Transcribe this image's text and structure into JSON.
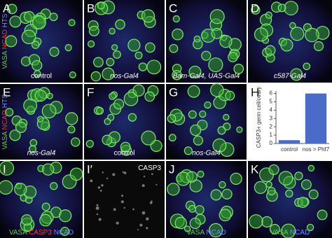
{
  "panels": [
    {
      "letter": "A",
      "caption": "control",
      "stains": [
        {
          "text": "VASA",
          "color": "#5ccc4a"
        },
        {
          "text": "NCAD",
          "color": "#ee3a2a"
        },
        {
          "text": "HTS",
          "color": "#6a8cff"
        }
      ],
      "stain_position": "left"
    },
    {
      "letter": "B",
      "caption": "nos-Gal4",
      "italic": true
    },
    {
      "letter": "C",
      "caption": "Bam-Gal4, UAS-Gal4",
      "italic": true
    },
    {
      "letter": "D",
      "caption": "c587-Gal4",
      "italic": true
    },
    {
      "letter": "E",
      "caption": "nos-Gal4",
      "italic": true,
      "stains": [
        {
          "text": "VASA",
          "color": "#5ccc4a"
        },
        {
          "text": "NCAD",
          "color": "#ee3a2a"
        },
        {
          "text": "HTS",
          "color": "#6a8cff"
        }
      ],
      "stain_position": "left"
    },
    {
      "letter": "F",
      "caption": "control"
    },
    {
      "letter": "G",
      "caption": "nos-Gal4",
      "italic": true
    },
    {
      "letter": "H"
    },
    {
      "letter": "I",
      "stains": [
        {
          "text": "VASA",
          "color": "#5ccc4a"
        },
        {
          "text": "CASP3",
          "color": "#ee3a2a"
        },
        {
          "text": "NCAD",
          "color": "#6a8cff"
        }
      ],
      "stain_position": "bottom"
    },
    {
      "letter": "I′",
      "stains": [
        {
          "text": "CASP3",
          "color": "#ffffff"
        }
      ],
      "stain_position": "top-right"
    },
    {
      "letter": "J",
      "stains": [
        {
          "text": "VASA",
          "color": "#5ccc4a"
        },
        {
          "text": "NCAD",
          "color": "#6a8cff"
        }
      ],
      "stain_position": "bottom"
    },
    {
      "letter": "K",
      "stains": [
        {
          "text": "VASA",
          "color": "#5ccc4a"
        },
        {
          "text": "NCAD",
          "color": "#6a8cff"
        }
      ],
      "stain_position": "bottom"
    }
  ],
  "chart_data": {
    "type": "bar",
    "y_label": "CASP3+ germ cell/ovary",
    "categories": [
      "control",
      "nos > Phf7"
    ],
    "values": [
      0.4,
      6
    ],
    "color": "#4a6cc8",
    "ylim": [
      0,
      6.3
    ],
    "yticks": [
      0,
      1,
      2,
      3,
      4,
      5,
      6
    ]
  }
}
